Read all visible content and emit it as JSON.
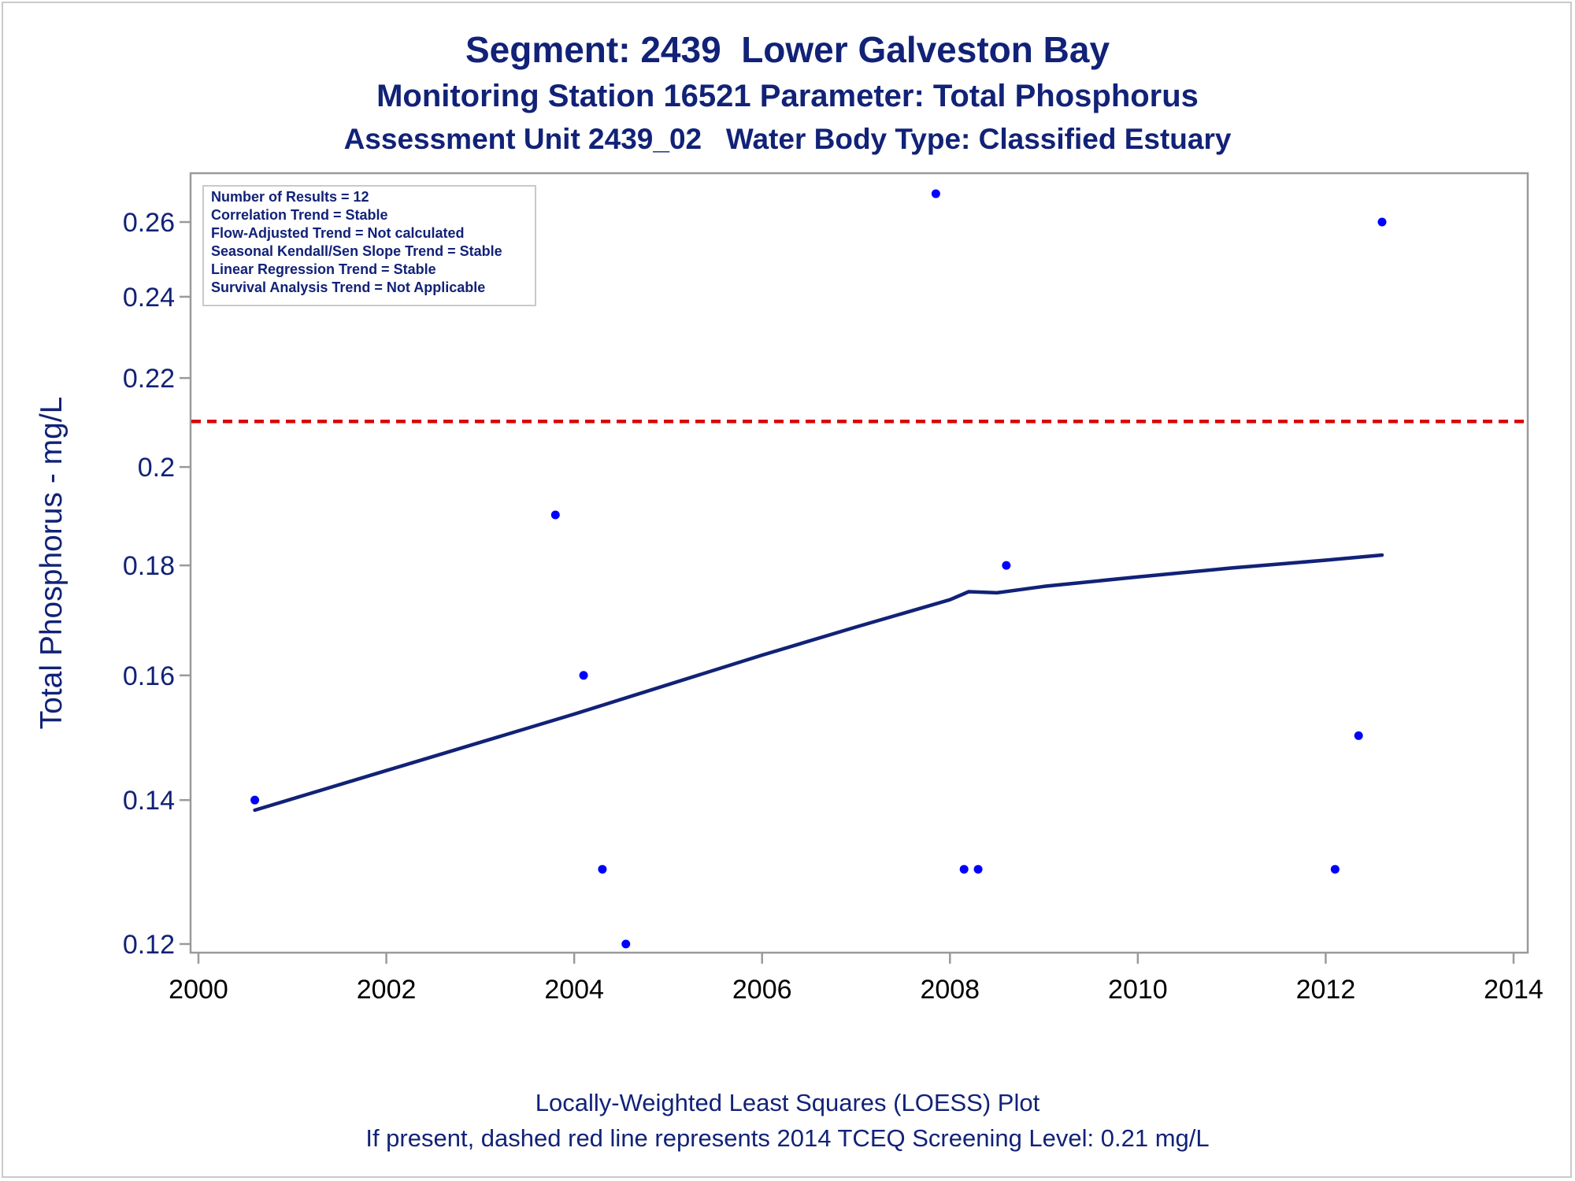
{
  "titles": [
    "Segment: 2439  Lower Galveston Bay",
    "Monitoring Station 16521 Parameter: Total Phosphorus",
    "Assessment Unit 2439_02   Water Body Type: Classified Estuary"
  ],
  "footnotes": [
    "Locally-Weighted Least Squares (LOESS) Plot",
    "If present, dashed red line represents 2014 TCEQ Screening Level: 0.21 mg/L"
  ],
  "colors": {
    "title_text": "#112277",
    "points": "#0000ff",
    "loess_line": "#112277",
    "screening_line": "#dd0000",
    "axis": "#9a9a9a"
  },
  "chart_data": {
    "type": "scatter",
    "ylabel": "Total Phosphorus - mg/L",
    "y_scale": "log",
    "xlim": [
      2000,
      2014
    ],
    "ylim": [
      0.12,
      0.27
    ],
    "x_ticks": [
      2000,
      2002,
      2004,
      2006,
      2008,
      2010,
      2012,
      2014
    ],
    "y_ticks": [
      0.12,
      0.14,
      0.16,
      0.18,
      0.2,
      0.22,
      0.24,
      0.26
    ],
    "y_tick_labels": [
      "0.12",
      "0.14",
      "0.16",
      "0.18",
      "0.2",
      "0.22",
      "0.24",
      "0.26"
    ],
    "grid": false,
    "legend_placement": "top-left",
    "stats_box": [
      "Number of Results = 12",
      "Correlation Trend = Stable",
      "Flow-Adjusted Trend = Not calculated",
      "Seasonal Kendall/Sen Slope Trend = Stable",
      "Linear Regression Trend = Stable",
      "Survival Analysis Trend = Not Applicable"
    ],
    "points": [
      {
        "x": 2000.6,
        "y": 0.14
      },
      {
        "x": 2003.8,
        "y": 0.19
      },
      {
        "x": 2004.1,
        "y": 0.16
      },
      {
        "x": 2004.3,
        "y": 0.13
      },
      {
        "x": 2004.55,
        "y": 0.12
      },
      {
        "x": 2007.85,
        "y": 0.268
      },
      {
        "x": 2008.15,
        "y": 0.13
      },
      {
        "x": 2008.3,
        "y": 0.13
      },
      {
        "x": 2008.6,
        "y": 0.18
      },
      {
        "x": 2012.1,
        "y": 0.13
      },
      {
        "x": 2012.35,
        "y": 0.15
      },
      {
        "x": 2012.6,
        "y": 0.26
      }
    ],
    "loess": [
      {
        "x": 2000.6,
        "y": 0.1385
      },
      {
        "x": 2002.0,
        "y": 0.1445
      },
      {
        "x": 2004.0,
        "y": 0.1535
      },
      {
        "x": 2006.0,
        "y": 0.1635
      },
      {
        "x": 2007.0,
        "y": 0.1685
      },
      {
        "x": 2008.0,
        "y": 0.1735
      },
      {
        "x": 2008.2,
        "y": 0.175
      },
      {
        "x": 2008.5,
        "y": 0.1748
      },
      {
        "x": 2009.0,
        "y": 0.176
      },
      {
        "x": 2010.0,
        "y": 0.1778
      },
      {
        "x": 2011.0,
        "y": 0.1795
      },
      {
        "x": 2012.0,
        "y": 0.181
      },
      {
        "x": 2012.6,
        "y": 0.182
      }
    ],
    "screening_level": 0.21
  }
}
